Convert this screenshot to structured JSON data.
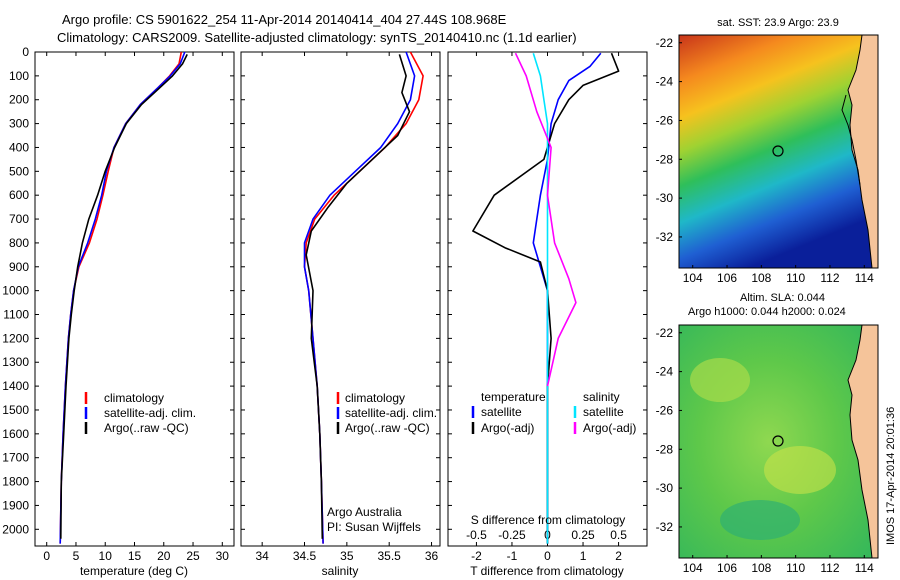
{
  "header": {
    "line1": "Argo profile: CS 5901622_254 11-Apr-2014 20140414_404 27.44S 108.968E",
    "line2": "Climatology: CARS2009. Satellite-adjusted climatology: synTS_20140410.nc (1.1d earlier)"
  },
  "footer": {
    "argo": "Argo Australia",
    "pi": "PI: Susan Wijffels",
    "stamp": "IMOS 17-Apr-2014 20:01:36"
  },
  "colors": {
    "climatology": "#ff0000",
    "satellite": "#0000ff",
    "argo": "#000000",
    "sat_sal": "#00e5ff",
    "argo_sal": "#ff00ff"
  },
  "chart_data": [
    {
      "type": "line",
      "id": "temperature",
      "xlabel": "temperature (deg C)",
      "ylabel": "",
      "xlim": [
        -2,
        32
      ],
      "ylim": [
        2070,
        0
      ],
      "xticks": [
        0,
        5,
        10,
        15,
        20,
        25,
        30
      ],
      "yticks": [
        0,
        100,
        200,
        300,
        400,
        500,
        600,
        700,
        800,
        900,
        1000,
        1100,
        1200,
        1300,
        1400,
        1500,
        1600,
        1700,
        1800,
        1900,
        2000
      ],
      "legend": [
        "climatology",
        "satellite-adj. clim.",
        "Argo(..raw -QC)"
      ],
      "series": [
        {
          "name": "climatology",
          "color": "#ff0000",
          "x": [
            23.0,
            22.6,
            21.0,
            19.0,
            16.0,
            13.5,
            11.5,
            10.5,
            9.6,
            8.6,
            7.3,
            5.5,
            4.6,
            4.1,
            3.7,
            3.2,
            2.8,
            2.5,
            2.3
          ],
          "y": [
            0,
            50,
            100,
            150,
            220,
            300,
            400,
            500,
            600,
            700,
            800,
            900,
            1000,
            1100,
            1200,
            1400,
            1600,
            1800,
            2060
          ]
        },
        {
          "name": "satellite-adj. clim.",
          "color": "#0000ff",
          "x": [
            23.6,
            22.8,
            21.1,
            19.0,
            16.0,
            13.5,
            11.5,
            10.2,
            9.4,
            8.3,
            7.0,
            5.4,
            4.6,
            4.1,
            3.7,
            3.2,
            2.8,
            2.5,
            2.3
          ],
          "y": [
            0,
            50,
            100,
            150,
            220,
            300,
            400,
            500,
            600,
            700,
            800,
            900,
            1000,
            1100,
            1200,
            1400,
            1600,
            1800,
            2060
          ]
        },
        {
          "name": "Argo(..raw -QC)",
          "color": "#000000",
          "x": [
            24.0,
            23.2,
            21.5,
            19.3,
            16.2,
            13.6,
            11.6,
            10.0,
            8.7,
            7.2,
            6.1,
            5.3,
            4.7,
            4.2,
            3.8,
            3.3,
            2.9,
            2.5,
            2.4
          ],
          "y": [
            10,
            50,
            100,
            150,
            220,
            300,
            400,
            500,
            600,
            700,
            800,
            900,
            1000,
            1100,
            1200,
            1400,
            1600,
            1800,
            2040
          ]
        }
      ]
    },
    {
      "type": "line",
      "id": "salinity",
      "xlabel": "salinity",
      "xlim": [
        33.75,
        36.1
      ],
      "ylim": [
        2070,
        0
      ],
      "xticks": [
        34,
        34.5,
        35,
        35.5,
        36
      ],
      "legend": [
        "climatology",
        "satellite-adj. clim.",
        "Argo(..raw -QC)"
      ],
      "series": [
        {
          "name": "climatology",
          "color": "#ff0000",
          "x": [
            35.75,
            35.9,
            35.85,
            35.7,
            35.45,
            35.15,
            34.85,
            34.62,
            34.52,
            34.5,
            34.55,
            34.6,
            34.65,
            34.68,
            34.7,
            34.72
          ],
          "y": [
            0,
            100,
            200,
            300,
            400,
            500,
            600,
            700,
            800,
            900,
            1000,
            1200,
            1400,
            1600,
            1800,
            2060
          ]
        },
        {
          "name": "satellite-adj. clim.",
          "color": "#0000ff",
          "x": [
            35.7,
            35.8,
            35.75,
            35.6,
            35.4,
            35.1,
            34.8,
            34.6,
            34.5,
            34.5,
            34.55,
            34.6,
            34.65,
            34.68,
            34.7,
            34.72
          ],
          "y": [
            0,
            100,
            200,
            300,
            400,
            500,
            600,
            700,
            800,
            900,
            1000,
            1200,
            1400,
            1600,
            1800,
            2060
          ]
        },
        {
          "name": "Argo(..raw -QC)",
          "color": "#000000",
          "x": [
            35.62,
            35.7,
            35.65,
            35.74,
            35.6,
            35.3,
            35.0,
            34.78,
            34.58,
            34.52,
            34.6,
            34.58,
            34.65,
            34.68,
            34.7,
            34.71
          ],
          "y": [
            10,
            100,
            170,
            250,
            350,
            450,
            550,
            650,
            750,
            850,
            1000,
            1200,
            1400,
            1600,
            1800,
            2040
          ]
        }
      ]
    },
    {
      "type": "line",
      "id": "difference",
      "xlabel": "T difference from climatology",
      "xlabel_top": "S difference from climatology",
      "xlim": [
        -2.8,
        2.8
      ],
      "ylim": [
        2070,
        0
      ],
      "xticks": [
        -2,
        -1,
        0,
        1,
        2
      ],
      "sticks_labels": [
        "-0.5",
        "-0.25",
        "0",
        "0.25",
        "0.5"
      ],
      "legend_left_title": "temperature",
      "legend_right_title": "salinity",
      "legend": [
        "satellite",
        "Argo(-adj)",
        "satellite",
        "Argo(-adj)"
      ],
      "series": [
        {
          "name": "temperature satellite",
          "color": "#0000ff",
          "x": [
            1.5,
            1.2,
            0.6,
            0.3,
            0.1,
            0.0,
            -0.2,
            -0.3,
            -0.4,
            -0.2,
            0.0,
            0.0,
            0.0,
            0.0,
            0.0
          ],
          "y": [
            5,
            60,
            120,
            200,
            300,
            450,
            600,
            700,
            800,
            900,
            1000,
            1200,
            1400,
            1700,
            2060
          ]
        },
        {
          "name": "temperature Argo(-adj)",
          "color": "#000000",
          "x": [
            1.8,
            2.0,
            1.0,
            0.6,
            0.2,
            -0.1,
            -1.5,
            -2.1,
            -1.2,
            -0.2,
            0.0,
            0.1,
            0.0,
            0.0,
            0.0
          ],
          "y": [
            5,
            80,
            140,
            200,
            300,
            450,
            600,
            750,
            820,
            880,
            1000,
            1200,
            1400,
            1700,
            2060
          ]
        },
        {
          "name": "salinity satellite",
          "color": "#00e5ff",
          "x": [
            -0.4,
            -0.2,
            -0.1,
            0.0,
            0.0,
            0.0,
            0.0,
            0.0,
            0.0,
            0.0
          ],
          "y": [
            5,
            100,
            200,
            300,
            500,
            800,
            1100,
            1400,
            1700,
            2060
          ]
        },
        {
          "name": "salinity Argo(-adj)",
          "color": "#ff00ff",
          "x": [
            -0.9,
            -0.6,
            -0.3,
            0.1,
            0.0,
            0.2,
            0.6,
            0.8,
            0.3,
            0.0
          ],
          "y": [
            5,
            100,
            250,
            400,
            600,
            800,
            950,
            1050,
            1200,
            1400
          ]
        }
      ]
    },
    {
      "type": "heatmap",
      "id": "sst-map",
      "title": "sat. SST: 23.9 Argo: 23.9",
      "xticks": [
        104,
        106,
        108,
        110,
        112,
        114
      ],
      "yticks": [
        -22,
        -24,
        -26,
        -28,
        -30,
        -32
      ],
      "xlim": [
        103.2,
        114.8
      ],
      "ylim": [
        -33.6,
        -21.6
      ],
      "marker": {
        "lon": 108.968,
        "lat": -27.44
      }
    },
    {
      "type": "heatmap",
      "id": "sla-map",
      "title": "Altim. SLA: 0.044",
      "subtitle": "Argo h1000: 0.044 h2000: 0.024",
      "xticks": [
        104,
        106,
        108,
        110,
        112,
        114
      ],
      "yticks": [
        -22,
        -24,
        -26,
        -28,
        -30,
        -32
      ],
      "xlim": [
        103.2,
        114.8
      ],
      "ylim": [
        -33.6,
        -21.6
      ],
      "marker": {
        "lon": 108.968,
        "lat": -27.44
      }
    }
  ]
}
